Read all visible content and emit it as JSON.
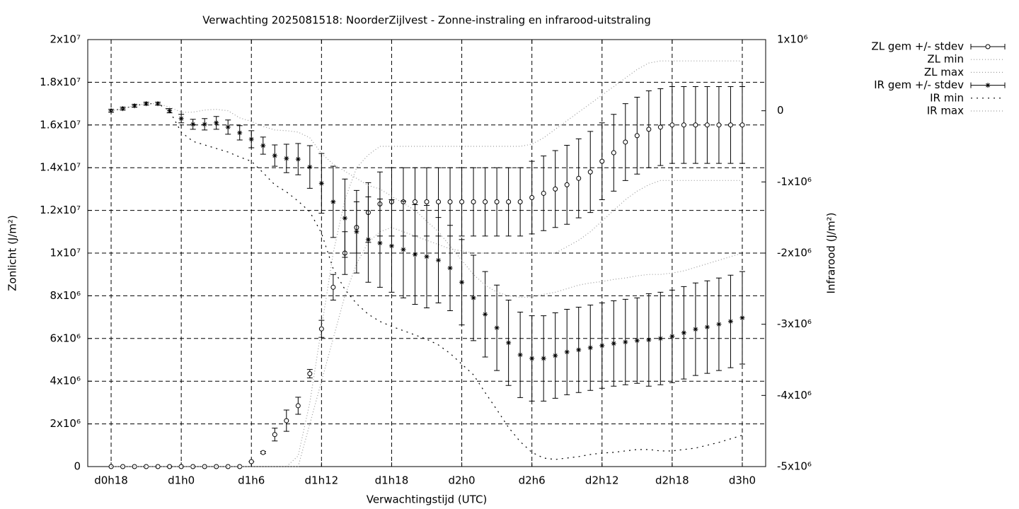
{
  "chart_data": {
    "type": "errorbar-line",
    "title": "Verwachting 2025081518: NoorderZijlvest - Zonne-instraling en infrarood-uitstraling",
    "xlabel": "Verwachtingstijd (UTC)",
    "ylabel": "Zonlicht (J/m²)",
    "y2label": "Infrarood (J/m²)",
    "x": [
      18,
      19,
      20,
      21,
      22,
      23,
      24,
      25,
      26,
      27,
      28,
      29,
      30,
      31,
      32,
      33,
      34,
      35,
      36,
      37,
      38,
      39,
      40,
      41,
      42,
      43,
      44,
      45,
      46,
      47,
      48,
      49,
      50,
      51,
      52,
      53,
      54,
      55,
      56,
      57,
      58,
      59,
      60,
      61,
      62,
      63,
      64,
      65,
      66,
      67,
      68,
      69,
      70,
      71,
      72
    ],
    "xlim": [
      16,
      74
    ],
    "xticks": [
      {
        "value": 18,
        "label": "d0h18"
      },
      {
        "value": 24,
        "label": "d1h0"
      },
      {
        "value": 30,
        "label": "d1h6"
      },
      {
        "value": 36,
        "label": "d1h12"
      },
      {
        "value": 42,
        "label": "d1h18"
      },
      {
        "value": 48,
        "label": "d2h0"
      },
      {
        "value": 54,
        "label": "d2h6"
      },
      {
        "value": 60,
        "label": "d2h12"
      },
      {
        "value": 66,
        "label": "d2h18"
      },
      {
        "value": 72,
        "label": "d3h0"
      }
    ],
    "ylim": [
      0,
      20000000.0
    ],
    "yticks": [
      0,
      {
        "value": 2000000.0,
        "label": "2x10⁶"
      },
      {
        "value": 4000000.0,
        "label": "4x10⁶"
      },
      {
        "value": 6000000.0,
        "label": "6x10⁶"
      },
      {
        "value": 8000000.0,
        "label": "8x10⁶"
      },
      {
        "value": 10000000.0,
        "label": "1x10⁷"
      },
      {
        "value": 12000000.0,
        "label": "1.2x10⁷"
      },
      {
        "value": 14000000.0,
        "label": "1.4x10⁷"
      },
      {
        "value": 16000000.0,
        "label": "1.6x10⁷"
      },
      {
        "value": 18000000.0,
        "label": "1.8x10⁷"
      },
      {
        "value": 20000000.0,
        "label": "2x10⁷"
      }
    ],
    "y2lim": [
      -5000000.0,
      1000000.0
    ],
    "y2ticks": [
      {
        "value": -5000000.0,
        "label": "-5x10⁶"
      },
      {
        "value": -4000000.0,
        "label": "-4x10⁶"
      },
      {
        "value": -3000000.0,
        "label": "-3x10⁶"
      },
      {
        "value": -2000000.0,
        "label": "-2x10⁶"
      },
      {
        "value": -1000000.0,
        "label": "-1x10⁶"
      },
      0,
      {
        "value": 1000000.0,
        "label": "1x10⁶"
      }
    ],
    "grid": true,
    "legend": "outside-top-right",
    "series": [
      {
        "name": "ZL gem +/- stdev",
        "color": "#000000",
        "style": "errorbar",
        "marker": "circle",
        "values": [
          0,
          0,
          0,
          0,
          0,
          0,
          0,
          0,
          0,
          0,
          0,
          0,
          230000.0,
          660000.0,
          1500000.0,
          2150000.0,
          2850000.0,
          4350000.0,
          6450000.0,
          8400000.0,
          10000000.0,
          11200000.0,
          11900000.0,
          12300000.0,
          12400000.0,
          12400000.0,
          12400000.0,
          12400000.0,
          12400000.0,
          12400000.0,
          12400000.0,
          12400000.0,
          12400000.0,
          12400000.0,
          12400000.0,
          12400000.0,
          12600000.0,
          12800000.0,
          13000000.0,
          13200000.0,
          13500000.0,
          13800000.0,
          14300000.0,
          14700000.0,
          15200000.0,
          15500000.0,
          15800000.0,
          15900000.0,
          16000000.0,
          16000000.0,
          16000000.0,
          16000000.0,
          16000000.0,
          16000000.0,
          16000000.0
        ],
        "errors": [
          0,
          0,
          0,
          0,
          0,
          0,
          0,
          0,
          0,
          0,
          0,
          0,
          0,
          50000.0,
          300000.0,
          500000.0,
          400000.0,
          200000.0,
          400000.0,
          600000.0,
          1000000.0,
          1200000.0,
          1400000.0,
          1500000.0,
          1600000.0,
          1600000.0,
          1600000.0,
          1600000.0,
          1600000.0,
          1600000.0,
          1600000.0,
          1600000.0,
          1600000.0,
          1600000.0,
          1600000.0,
          1600000.0,
          1700000.0,
          1750000.0,
          1800000.0,
          1850000.0,
          1850000.0,
          1900000.0,
          1800000.0,
          1800000.0,
          1800000.0,
          1800000.0,
          1800000.0,
          1800000.0,
          1800000.0,
          1800000.0,
          1800000.0,
          1800000.0,
          1800000.0,
          1800000.0,
          1800000.0
        ]
      },
      {
        "name": "ZL min",
        "color": "#999999",
        "style": "dotted",
        "values": [
          0,
          0,
          0,
          0,
          0,
          0,
          0,
          0,
          0,
          0,
          0,
          0,
          0,
          0,
          0,
          0,
          0,
          2000000.0,
          4000000.0,
          6000000.0,
          8000000.0,
          9500000.0,
          10500000.0,
          11000000.0,
          11200000.0,
          11000000.0,
          10800000.0,
          10600000.0,
          10400000.0,
          10200000.0,
          10100000.0,
          10000000.0,
          10000000.0,
          10000000.0,
          10000000.0,
          10000000.0,
          10000000.0,
          10000000.0,
          10000000.0,
          10300000.0,
          10600000.0,
          11000000.0,
          11500000.0,
          12000000.0,
          12500000.0,
          12900000.0,
          13200000.0,
          13400000.0,
          13400000.0,
          13400000.0,
          13400000.0,
          13400000.0,
          13400000.0,
          13400000.0,
          13400000.0
        ]
      },
      {
        "name": "ZL max",
        "color": "#999999",
        "style": "dotted",
        "values": [
          0,
          0,
          0,
          0,
          0,
          0,
          0,
          0,
          0,
          0,
          0,
          0,
          0,
          0,
          0,
          0,
          500000.0,
          3000000.0,
          6500000.0,
          10000000.0,
          12500000.0,
          14000000.0,
          14600000.0,
          15000000.0,
          15000000.0,
          15000000.0,
          15000000.0,
          15000000.0,
          15000000.0,
          15000000.0,
          15000000.0,
          15000000.0,
          15000000.0,
          15000000.0,
          15000000.0,
          15000000.0,
          15100000.0,
          15400000.0,
          15800000.0,
          16200000.0,
          16600000.0,
          17000000.0,
          17400000.0,
          17800000.0,
          18200000.0,
          18600000.0,
          18900000.0,
          19000000.0,
          19000000.0,
          19000000.0,
          19000000.0,
          19000000.0,
          19000000.0,
          19000000.0,
          19000000.0
        ]
      },
      {
        "name": "IR gem +/- stdev",
        "color": "#000000",
        "style": "errorbar",
        "marker": "asterisk",
        "axis": "y2",
        "values": [
          0,
          30000.0,
          70000.0,
          100000.0,
          100000.0,
          0,
          -110000.0,
          -190000.0,
          -190000.0,
          -170000.0,
          -230000.0,
          -310000.0,
          -400000.0,
          -490000.0,
          -630000.0,
          -670000.0,
          -680000.0,
          -790000.0,
          -1020000.0,
          -1280000.0,
          -1510000.0,
          -1700000.0,
          -1810000.0,
          -1860000.0,
          -1900000.0,
          -1950000.0,
          -2020000.0,
          -2050000.0,
          -2100000.0,
          -2210000.0,
          -2410000.0,
          -2630000.0,
          -2860000.0,
          -3050000.0,
          -3260000.0,
          -3430000.0,
          -3480000.0,
          -3480000.0,
          -3440000.0,
          -3390000.0,
          -3360000.0,
          -3330000.0,
          -3300000.0,
          -3270000.0,
          -3250000.0,
          -3230000.0,
          -3220000.0,
          -3200000.0,
          -3170000.0,
          -3120000.0,
          -3070000.0,
          -3040000.0,
          -3000000.0,
          -2960000.0,
          -2910000.0
        ],
        "errors": [
          20000.0,
          20000.0,
          20000.0,
          20000.0,
          20000.0,
          30000.0,
          60000.0,
          70000.0,
          80000.0,
          90000.0,
          100000.0,
          100000.0,
          120000.0,
          120000.0,
          150000.0,
          200000.0,
          220000.0,
          300000.0,
          420000.0,
          500000.0,
          550000.0,
          580000.0,
          600000.0,
          620000.0,
          650000.0,
          680000.0,
          700000.0,
          720000.0,
          600000.0,
          600000.0,
          600000.0,
          600000.0,
          600000.0,
          600000.0,
          600000.0,
          600000.0,
          600000.0,
          600000.0,
          600000.0,
          600000.0,
          600000.0,
          600000.0,
          600000.0,
          600000.0,
          600000.0,
          600000.0,
          650000.0,
          650000.0,
          650000.0,
          650000.0,
          650000.0,
          650000.0,
          650000.0,
          650000.0,
          650000.0
        ]
      },
      {
        "name": "IR min",
        "color": "#000000",
        "style": "sparse-dotted",
        "axis": "y2",
        "values": [
          0,
          30000.0,
          70000.0,
          100000.0,
          100000.0,
          0,
          -300000.0,
          -430000.0,
          -480000.0,
          -530000.0,
          -580000.0,
          -650000.0,
          -710000.0,
          -870000.0,
          -1040000.0,
          -1140000.0,
          -1270000.0,
          -1420000.0,
          -1720000.0,
          -2220000.0,
          -2510000.0,
          -2710000.0,
          -2860000.0,
          -2960000.0,
          -3030000.0,
          -3090000.0,
          -3150000.0,
          -3210000.0,
          -3290000.0,
          -3410000.0,
          -3560000.0,
          -3710000.0,
          -3960000.0,
          -4200000.0,
          -4450000.0,
          -4650000.0,
          -4800000.0,
          -4880000.0,
          -4900000.0,
          -4880000.0,
          -4860000.0,
          -4830000.0,
          -4810000.0,
          -4800000.0,
          -4780000.0,
          -4760000.0,
          -4760000.0,
          -4780000.0,
          -4780000.0,
          -4760000.0,
          -4740000.0,
          -4700000.0,
          -4660000.0,
          -4610000.0,
          -4560000.0
        ]
      },
      {
        "name": "IR max",
        "color": "#999999",
        "style": "dotted",
        "axis": "y2",
        "values": [
          0,
          30000.0,
          70000.0,
          100000.0,
          100000.0,
          50000.0,
          -20000.0,
          -20000.0,
          10000.0,
          20000.0,
          0,
          -100000.0,
          -150000.0,
          -220000.0,
          -270000.0,
          -280000.0,
          -300000.0,
          -380000.0,
          -600000.0,
          -750000.0,
          -850000.0,
          -950000.0,
          -1050000.0,
          -1100000.0,
          -1200000.0,
          -1300000.0,
          -1400000.0,
          -1550000.0,
          -1700000.0,
          -1900000.0,
          -2100000.0,
          -2300000.0,
          -2450000.0,
          -2550000.0,
          -2600000.0,
          -2620000.0,
          -2620000.0,
          -2580000.0,
          -2550000.0,
          -2500000.0,
          -2450000.0,
          -2420000.0,
          -2400000.0,
          -2370000.0,
          -2350000.0,
          -2320000.0,
          -2300000.0,
          -2300000.0,
          -2280000.0,
          -2250000.0,
          -2200000.0,
          -2150000.0,
          -2100000.0,
          -2050000.0,
          -2000000.0
        ]
      }
    ]
  }
}
